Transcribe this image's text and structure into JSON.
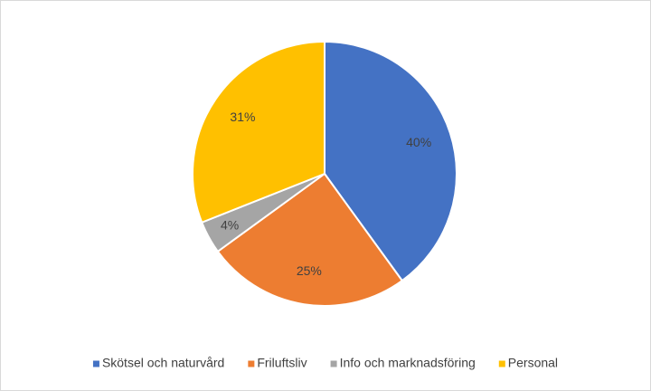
{
  "chart_data": {
    "type": "pie",
    "categories": [
      "Skötsel och naturvård",
      "Friluftsliv",
      "Info och marknadsföring",
      "Personal"
    ],
    "values": [
      40,
      25,
      4,
      31
    ],
    "value_labels": [
      "40%",
      "25%",
      "4%",
      "31%"
    ],
    "colors": [
      "#4472c4",
      "#ed7d31",
      "#a5a5a5",
      "#ffc000"
    ],
    "legend": "bottom"
  }
}
